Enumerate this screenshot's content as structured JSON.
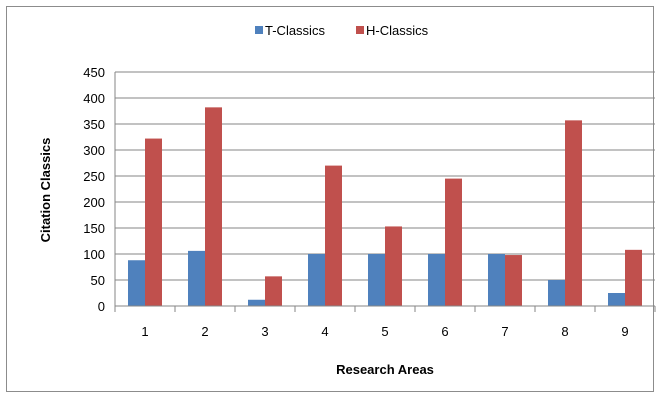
{
  "chart_data": {
    "type": "bar",
    "title": "",
    "xlabel": "Research Areas",
    "ylabel": "Citation Classics",
    "categories": [
      "1",
      "2",
      "3",
      "4",
      "5",
      "6",
      "7",
      "8",
      "9"
    ],
    "series": [
      {
        "name": "T-Classics",
        "color": "#4f81bd",
        "values": [
          88,
          106,
          12,
          100,
          100,
          100,
          100,
          50,
          25
        ]
      },
      {
        "name": "H-Classics",
        "color": "#c0504d",
        "values": [
          322,
          382,
          57,
          270,
          153,
          245,
          98,
          357,
          108
        ]
      }
    ],
    "ylim": [
      0,
      450
    ],
    "yticks": [
      0,
      50,
      100,
      150,
      200,
      250,
      300,
      350,
      400,
      450
    ],
    "grid": true,
    "legend_position": "top"
  }
}
